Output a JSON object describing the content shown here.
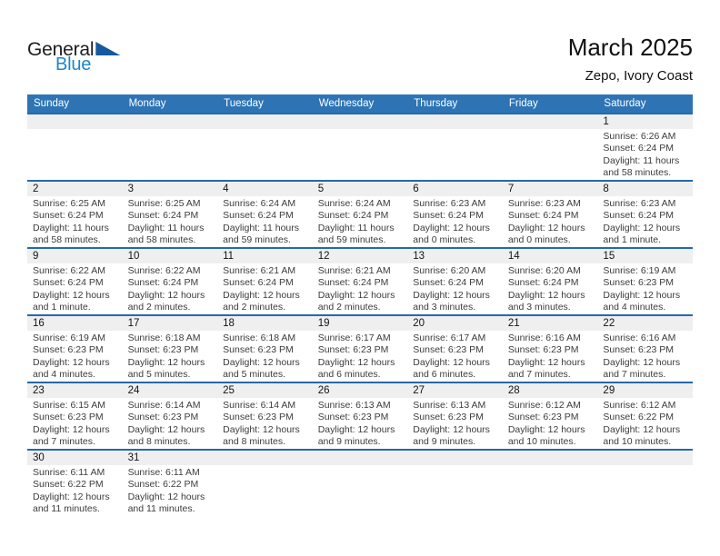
{
  "logo": {
    "word1": "General",
    "word2": "Blue",
    "triangle_icon": "blue-corner-triangle"
  },
  "title": "March 2025",
  "subtitle": "Zepo, Ivory Coast",
  "weekdays": [
    "Sunday",
    "Monday",
    "Tuesday",
    "Wednesday",
    "Thursday",
    "Friday",
    "Saturday"
  ],
  "labels": {
    "sunrise": "Sunrise:",
    "sunset": "Sunset:",
    "daylight": "Daylight:"
  },
  "colors": {
    "accent": "#2e74b5",
    "row_border": "#2569ab",
    "band_gray": "#efefef",
    "header_text": "#ffffff",
    "logo_blue": "#1e86cb",
    "logo_triangle": "#17599f",
    "text_dark": "#3c3c3c"
  },
  "calendar": {
    "weeks": [
      [
        null,
        null,
        null,
        null,
        null,
        null,
        {
          "day": "1",
          "sunrise": "6:26 AM",
          "sunset": "6:24 PM",
          "daylight": "11 hours and 58 minutes."
        }
      ],
      [
        {
          "day": "2",
          "sunrise": "6:25 AM",
          "sunset": "6:24 PM",
          "daylight": "11 hours and 58 minutes."
        },
        {
          "day": "3",
          "sunrise": "6:25 AM",
          "sunset": "6:24 PM",
          "daylight": "11 hours and 58 minutes."
        },
        {
          "day": "4",
          "sunrise": "6:24 AM",
          "sunset": "6:24 PM",
          "daylight": "11 hours and 59 minutes."
        },
        {
          "day": "5",
          "sunrise": "6:24 AM",
          "sunset": "6:24 PM",
          "daylight": "11 hours and 59 minutes."
        },
        {
          "day": "6",
          "sunrise": "6:23 AM",
          "sunset": "6:24 PM",
          "daylight": "12 hours and 0 minutes."
        },
        {
          "day": "7",
          "sunrise": "6:23 AM",
          "sunset": "6:24 PM",
          "daylight": "12 hours and 0 minutes."
        },
        {
          "day": "8",
          "sunrise": "6:23 AM",
          "sunset": "6:24 PM",
          "daylight": "12 hours and 1 minute."
        }
      ],
      [
        {
          "day": "9",
          "sunrise": "6:22 AM",
          "sunset": "6:24 PM",
          "daylight": "12 hours and 1 minute."
        },
        {
          "day": "10",
          "sunrise": "6:22 AM",
          "sunset": "6:24 PM",
          "daylight": "12 hours and 2 minutes."
        },
        {
          "day": "11",
          "sunrise": "6:21 AM",
          "sunset": "6:24 PM",
          "daylight": "12 hours and 2 minutes."
        },
        {
          "day": "12",
          "sunrise": "6:21 AM",
          "sunset": "6:24 PM",
          "daylight": "12 hours and 2 minutes."
        },
        {
          "day": "13",
          "sunrise": "6:20 AM",
          "sunset": "6:24 PM",
          "daylight": "12 hours and 3 minutes."
        },
        {
          "day": "14",
          "sunrise": "6:20 AM",
          "sunset": "6:24 PM",
          "daylight": "12 hours and 3 minutes."
        },
        {
          "day": "15",
          "sunrise": "6:19 AM",
          "sunset": "6:23 PM",
          "daylight": "12 hours and 4 minutes."
        }
      ],
      [
        {
          "day": "16",
          "sunrise": "6:19 AM",
          "sunset": "6:23 PM",
          "daylight": "12 hours and 4 minutes."
        },
        {
          "day": "17",
          "sunrise": "6:18 AM",
          "sunset": "6:23 PM",
          "daylight": "12 hours and 5 minutes."
        },
        {
          "day": "18",
          "sunrise": "6:18 AM",
          "sunset": "6:23 PM",
          "daylight": "12 hours and 5 minutes."
        },
        {
          "day": "19",
          "sunrise": "6:17 AM",
          "sunset": "6:23 PM",
          "daylight": "12 hours and 6 minutes."
        },
        {
          "day": "20",
          "sunrise": "6:17 AM",
          "sunset": "6:23 PM",
          "daylight": "12 hours and 6 minutes."
        },
        {
          "day": "21",
          "sunrise": "6:16 AM",
          "sunset": "6:23 PM",
          "daylight": "12 hours and 7 minutes."
        },
        {
          "day": "22",
          "sunrise": "6:16 AM",
          "sunset": "6:23 PM",
          "daylight": "12 hours and 7 minutes."
        }
      ],
      [
        {
          "day": "23",
          "sunrise": "6:15 AM",
          "sunset": "6:23 PM",
          "daylight": "12 hours and 7 minutes."
        },
        {
          "day": "24",
          "sunrise": "6:14 AM",
          "sunset": "6:23 PM",
          "daylight": "12 hours and 8 minutes."
        },
        {
          "day": "25",
          "sunrise": "6:14 AM",
          "sunset": "6:23 PM",
          "daylight": "12 hours and 8 minutes."
        },
        {
          "day": "26",
          "sunrise": "6:13 AM",
          "sunset": "6:23 PM",
          "daylight": "12 hours and 9 minutes."
        },
        {
          "day": "27",
          "sunrise": "6:13 AM",
          "sunset": "6:23 PM",
          "daylight": "12 hours and 9 minutes."
        },
        {
          "day": "28",
          "sunrise": "6:12 AM",
          "sunset": "6:23 PM",
          "daylight": "12 hours and 10 minutes."
        },
        {
          "day": "29",
          "sunrise": "6:12 AM",
          "sunset": "6:22 PM",
          "daylight": "12 hours and 10 minutes."
        }
      ],
      [
        {
          "day": "30",
          "sunrise": "6:11 AM",
          "sunset": "6:22 PM",
          "daylight": "12 hours and 11 minutes."
        },
        {
          "day": "31",
          "sunrise": "6:11 AM",
          "sunset": "6:22 PM",
          "daylight": "12 hours and 11 minutes."
        },
        null,
        null,
        null,
        null,
        null
      ]
    ]
  }
}
